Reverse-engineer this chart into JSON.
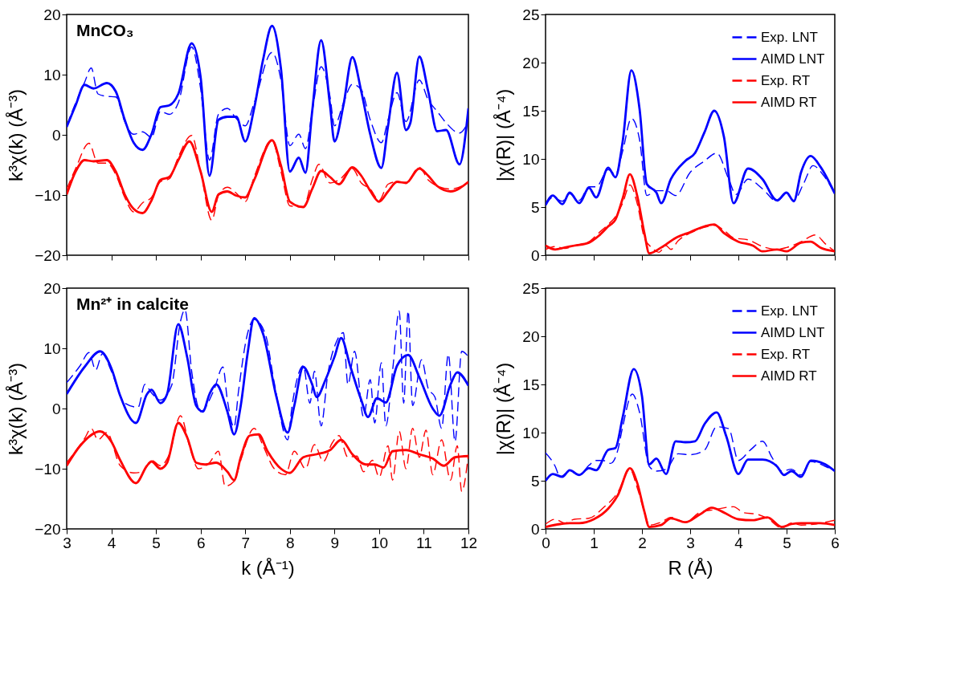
{
  "chart_data": [
    {
      "type": "line",
      "annotations": [
        "MnCO₃"
      ],
      "ylabel": "k³χ(k) (Å⁻³)",
      "xlim": [
        3,
        12
      ],
      "ylim": [
        -20,
        20
      ],
      "xticks": [
        3,
        4,
        5,
        6,
        7,
        8,
        9,
        10,
        11,
        12
      ],
      "yticks": [
        -20,
        -10,
        0,
        10,
        20
      ],
      "tick_labels": "y",
      "legend": false,
      "series": [
        {
          "color": "#0000ff",
          "line_style": "dashed",
          "x": [
            3,
            3.2,
            3.4,
            3.55,
            3.7,
            3.9,
            4.1,
            4.3,
            4.5,
            4.7,
            4.9,
            5.1,
            5.3,
            5.5,
            5.8,
            6.0,
            6.2,
            6.4,
            6.6,
            6.8,
            7.0,
            7.2,
            7.6,
            7.8,
            8.0,
            8.2,
            8.35,
            8.5,
            8.7,
            8.9,
            9.0,
            9.2,
            9.4,
            9.6,
            9.8,
            10.05,
            10.2,
            10.4,
            10.6,
            10.9,
            11.1,
            11.3,
            11.5,
            11.8,
            12
          ],
          "values": [
            1.5,
            5.3,
            8.7,
            11.1,
            6.8,
            6.4,
            6.3,
            2.2,
            0.1,
            0.5,
            -0.4,
            3.9,
            3.4,
            5.3,
            14.6,
            7.7,
            -4.2,
            3.4,
            4.4,
            2.7,
            1.5,
            5.3,
            13.7,
            9.1,
            -1.8,
            0.1,
            -2.3,
            3.9,
            11.3,
            6.3,
            1.5,
            5.3,
            8.4,
            7.5,
            2.5,
            -1.3,
            2.5,
            7,
            2.2,
            9.1,
            5.8,
            3.9,
            2,
            0.3,
            2.2
          ]
        },
        {
          "color": "#0000ff",
          "line_style": "solid",
          "x": [
            3,
            3.2,
            3.4,
            3.6,
            3.9,
            4.1,
            4.3,
            4.5,
            4.7,
            4.9,
            5.1,
            5.3,
            5.5,
            5.8,
            6.0,
            6.2,
            6.4,
            6.6,
            6.8,
            7.0,
            7.2,
            7.4,
            7.6,
            7.8,
            8.0,
            8.2,
            8.35,
            8.5,
            8.7,
            8.9,
            9.0,
            9.2,
            9.4,
            9.6,
            9.8,
            10.05,
            10.2,
            10.4,
            10.6,
            10.7,
            10.9,
            11.1,
            11.3,
            11.5,
            11.8,
            12
          ],
          "values": [
            1.3,
            4.9,
            8.3,
            7.7,
            8.6,
            7.2,
            2.5,
            -1.3,
            -2.5,
            0.1,
            4.6,
            4.9,
            6.8,
            15.2,
            9.6,
            -6.8,
            2.5,
            3,
            3,
            -1.1,
            4.4,
            12.5,
            18.1,
            11,
            -6.1,
            -3.8,
            -6.3,
            3.9,
            15.7,
            4.9,
            -1.1,
            4.9,
            12.9,
            7.2,
            0.1,
            -5.5,
            1.5,
            10.3,
            0.8,
            2,
            13,
            7.2,
            0.6,
            0.8,
            -4.9,
            4.4
          ]
        },
        {
          "color": "#ff0000",
          "line_style": "dashed",
          "x": [
            3,
            3.2,
            3.5,
            3.7,
            3.9,
            4.1,
            4.3,
            4.5,
            4.7,
            4.9,
            5.1,
            5.3,
            5.5,
            5.8,
            6.0,
            6.25,
            6.4,
            6.6,
            6.8,
            7.0,
            7.2,
            7.6,
            7.8,
            8.0,
            8.3,
            8.5,
            8.65,
            8.9,
            9.1,
            9.4,
            9.6,
            9.8,
            10.0,
            10.2,
            10.4,
            10.6,
            10.9,
            11.1,
            11.3,
            11.6,
            12
          ],
          "values": [
            -9,
            -5.6,
            -1.4,
            -4.7,
            -4.7,
            -6.6,
            -10.4,
            -12.8,
            -11.3,
            -10.4,
            -7.8,
            -7.3,
            -3.7,
            -0.1,
            -6.1,
            -14.2,
            -10.1,
            -8.7,
            -9.7,
            -11.1,
            -7,
            -0.9,
            -6.1,
            -11.8,
            -12,
            -7.5,
            -4.9,
            -8,
            -7.5,
            -5.6,
            -8,
            -9,
            -10.9,
            -8.2,
            -7.8,
            -7.9,
            -5.4,
            -7.5,
            -8.5,
            -9,
            -8
          ]
        },
        {
          "color": "#ff0000",
          "line_style": "solid",
          "x": [
            3,
            3.2,
            3.4,
            3.6,
            3.9,
            4.1,
            4.3,
            4.5,
            4.7,
            4.9,
            5.1,
            5.3,
            5.5,
            5.75,
            6.0,
            6.25,
            6.4,
            6.6,
            6.8,
            7.0,
            7.2,
            7.6,
            7.8,
            8.0,
            8.3,
            8.5,
            8.7,
            8.9,
            9.1,
            9.4,
            9.6,
            9.8,
            10.0,
            10.2,
            10.4,
            10.6,
            10.9,
            11.1,
            11.3,
            11.6,
            12
          ],
          "values": [
            -9.9,
            -6.1,
            -4.2,
            -4.4,
            -4.2,
            -6.1,
            -9.9,
            -12.3,
            -13,
            -10.9,
            -7.5,
            -7,
            -4.2,
            -1.1,
            -6.1,
            -12.8,
            -9.9,
            -9.4,
            -10.1,
            -10.4,
            -7.5,
            -0.9,
            -5.1,
            -11.1,
            -12,
            -9,
            -6,
            -7,
            -8.2,
            -5.4,
            -6.8,
            -9.3,
            -11.1,
            -9.4,
            -7.8,
            -8,
            -5.6,
            -6.8,
            -8.5,
            -9.4,
            -7.8
          ]
        }
      ]
    },
    {
      "type": "line",
      "ylabel": "|χ(R)| (Å⁻⁴)",
      "xlim": [
        0,
        6
      ],
      "ylim": [
        0,
        25
      ],
      "xticks": [
        0,
        1,
        2,
        3,
        4,
        5,
        6
      ],
      "yticks": [
        0,
        5,
        10,
        15,
        20,
        25
      ],
      "tick_labels": "y",
      "legend": "top right",
      "series": [
        {
          "name": "Exp. LNT",
          "color": "#0000ff",
          "line_style": "dashed",
          "x": [
            0,
            0.15,
            0.35,
            0.5,
            0.7,
            0.9,
            1.05,
            1.3,
            1.45,
            1.6,
            1.78,
            1.95,
            2.1,
            2.3,
            2.5,
            2.7,
            3.0,
            3.3,
            3.55,
            3.8,
            3.95,
            4.2,
            4.5,
            4.8,
            5.0,
            5.15,
            5.35,
            5.55,
            5.75,
            6.0
          ],
          "values": [
            5.2,
            6,
            5.6,
            6.4,
            5.7,
            7.1,
            7.1,
            8.9,
            8.4,
            10.8,
            14.2,
            12,
            6.2,
            6.7,
            6.7,
            6.2,
            8.6,
            9.8,
            10.6,
            7.9,
            6.3,
            7.9,
            6.9,
            5.6,
            6.4,
            5.7,
            7.4,
            9.3,
            8.4,
            6.4
          ]
        },
        {
          "name": "AIMD LNT",
          "color": "#0000ff",
          "line_style": "solid",
          "x": [
            0,
            0.15,
            0.35,
            0.5,
            0.7,
            0.9,
            1.05,
            1.3,
            1.45,
            1.6,
            1.78,
            1.95,
            2.1,
            2.3,
            2.4,
            2.6,
            2.9,
            3.1,
            3.3,
            3.5,
            3.7,
            3.9,
            4.2,
            4.5,
            4.8,
            5.0,
            5.15,
            5.3,
            5.5,
            5.7,
            6.0
          ],
          "values": [
            5.2,
            6.2,
            5.3,
            6.5,
            5.4,
            7,
            6,
            9.1,
            8.1,
            11.8,
            19.2,
            15.2,
            7.4,
            6.5,
            5.4,
            7.9,
            9.8,
            10.6,
            12.8,
            15,
            12.3,
            5.4,
            9,
            7.9,
            5.7,
            6.5,
            5.6,
            8.6,
            10.3,
            9.2,
            6.4
          ]
        },
        {
          "name": "Exp. RT",
          "color": "#ff0000",
          "line_style": "dashed",
          "x": [
            0,
            0.2,
            0.4,
            0.6,
            0.9,
            1.1,
            1.3,
            1.45,
            1.6,
            1.75,
            1.9,
            2.05,
            2.2,
            2.35,
            2.5,
            2.6,
            2.75,
            3.0,
            3.3,
            3.5,
            3.7,
            3.9,
            4.2,
            4.5,
            4.8,
            5.0,
            5.3,
            5.6,
            5.8,
            6.0
          ],
          "values": [
            0.6,
            0.9,
            0.7,
            1,
            1.4,
            2.3,
            3.2,
            4,
            5.4,
            7.3,
            5.4,
            1.8,
            0.8,
            0.3,
            1,
            0.6,
            1.5,
            2.3,
            2.9,
            3.1,
            2.6,
            1.8,
            1.6,
            0.9,
            0.6,
            0.8,
            1.4,
            2.1,
            1.2,
            0.4
          ]
        },
        {
          "name": "AIMD RT",
          "color": "#ff0000",
          "line_style": "solid",
          "x": [
            0,
            0.2,
            0.4,
            0.6,
            0.9,
            1.1,
            1.3,
            1.45,
            1.6,
            1.75,
            1.9,
            2.05,
            2.15,
            2.4,
            2.7,
            3.0,
            3.3,
            3.5,
            3.7,
            4.0,
            4.3,
            4.5,
            4.8,
            5.0,
            5.3,
            5.5,
            5.7,
            6.0
          ],
          "values": [
            1,
            0.6,
            0.8,
            1,
            1.3,
            2,
            3,
            3.7,
            5.9,
            8.4,
            6.2,
            2.3,
            0.2,
            0.8,
            1.8,
            2.4,
            3,
            3.2,
            2.3,
            1.4,
            1,
            0.4,
            0.6,
            0.4,
            1.3,
            1.4,
            0.8,
            0.4
          ]
        }
      ]
    },
    {
      "type": "line",
      "annotations": [
        "Mn²⁺ in calcite"
      ],
      "xlabel": "k (Å⁻¹)",
      "ylabel": "k³χ(k) (Å⁻³)",
      "xlim": [
        3,
        12
      ],
      "ylim": [
        -20,
        20
      ],
      "xticks": [
        3,
        4,
        5,
        6,
        7,
        8,
        9,
        10,
        11,
        12
      ],
      "yticks": [
        -20,
        -10,
        0,
        10,
        20
      ],
      "legend": false,
      "series": [
        {
          "color": "#0000ff",
          "line_style": "dashed",
          "x": [
            3,
            3.3,
            3.5,
            3.65,
            3.8,
            4.0,
            4.3,
            4.6,
            4.75,
            4.9,
            5.1,
            5.35,
            5.55,
            5.65,
            5.8,
            6.0,
            6.3,
            6.5,
            6.6,
            6.75,
            6.85,
            7.05,
            7.2,
            7.45,
            7.65,
            7.95,
            8.05,
            8.3,
            8.45,
            8.55,
            8.7,
            8.85,
            9.05,
            9.2,
            9.3,
            9.45,
            9.65,
            9.8,
            9.9,
            10.05,
            10.15,
            10.3,
            10.45,
            10.55,
            10.65,
            10.75,
            10.95,
            11.1,
            11.25,
            11.4,
            11.55,
            11.7,
            11.85,
            12
          ],
          "values": [
            4.3,
            7.1,
            9.3,
            6.4,
            9.1,
            6.2,
            0.9,
            0.2,
            4,
            2.6,
            1.4,
            3.8,
            14.5,
            16.4,
            6.2,
            -0.5,
            3.1,
            6.9,
            1.4,
            -3.1,
            2.9,
            12.4,
            14.8,
            12.4,
            4.3,
            -5.2,
            0.5,
            7.1,
            0.9,
            6.2,
            -2.9,
            5.7,
            11.2,
            12.6,
            4,
            9.5,
            -1.4,
            4.8,
            -2.4,
            7.6,
            -2.9,
            6.2,
            16.2,
            0.9,
            16.2,
            0.5,
            8.1,
            3.3,
            1.9,
            -3.3,
            9,
            -5.5,
            9.5,
            8.6
          ]
        },
        {
          "color": "#0000ff",
          "line_style": "solid",
          "x": [
            3,
            3.4,
            3.75,
            4.0,
            4.2,
            4.55,
            4.8,
            4.9,
            5.1,
            5.25,
            5.5,
            5.7,
            5.9,
            6.05,
            6.2,
            6.35,
            6.6,
            6.75,
            6.9,
            7.05,
            7.2,
            7.4,
            7.7,
            7.95,
            8.1,
            8.3,
            8.5,
            8.6,
            8.8,
            9.0,
            9.15,
            9.35,
            9.6,
            9.75,
            9.95,
            10.15,
            10.4,
            10.65,
            10.9,
            11.2,
            11.35,
            11.6,
            11.75,
            12
          ],
          "values": [
            2.4,
            6.9,
            9.5,
            6.7,
            2.1,
            -2.4,
            2.4,
            3.1,
            0.9,
            2.4,
            14,
            8.5,
            0.5,
            -0.5,
            2.4,
            4,
            -0.5,
            -4.3,
            0.5,
            9,
            15,
            12.4,
            1.9,
            -4,
            0.5,
            6.9,
            4,
            1.9,
            4.8,
            8.6,
            11.7,
            7.1,
            1.4,
            -1.4,
            1.7,
            1,
            7.1,
            8.9,
            5.2,
            0,
            -1.2,
            4,
            6,
            3.8
          ]
        },
        {
          "color": "#ff0000",
          "line_style": "dashed",
          "x": [
            3,
            3.4,
            3.55,
            3.7,
            3.9,
            4.2,
            4.5,
            4.7,
            4.9,
            5.1,
            5.3,
            5.55,
            5.75,
            5.95,
            6.2,
            6.4,
            6.55,
            6.75,
            6.9,
            7.2,
            7.4,
            7.65,
            7.9,
            8.1,
            8.35,
            8.55,
            8.75,
            8.95,
            9.1,
            9.3,
            9.5,
            9.65,
            9.85,
            10.0,
            10.2,
            10.3,
            10.45,
            10.6,
            10.75,
            10.9,
            11.05,
            11.2,
            11.4,
            11.6,
            11.75,
            11.85,
            12
          ],
          "values": [
            -9,
            -5,
            -3.3,
            -5.2,
            -4,
            -9.5,
            -10.7,
            -10.5,
            -8.6,
            -9.5,
            -7.6,
            -1.2,
            -6.2,
            -10,
            -9,
            -7.1,
            -12.9,
            -12.1,
            -8.6,
            -3.3,
            -6.2,
            -10,
            -11,
            -7.1,
            -10,
            -6,
            -8.8,
            -5.7,
            -4.5,
            -8.1,
            -7.9,
            -10.5,
            -8.6,
            -11.4,
            -6.2,
            -11.9,
            -3.8,
            -10,
            -3.3,
            -8.1,
            -3.6,
            -11,
            -5.2,
            -11.9,
            -6.2,
            -13.8,
            -7.6
          ]
        },
        {
          "color": "#ff0000",
          "line_style": "solid",
          "x": [
            3,
            3.3,
            3.75,
            4.0,
            4.2,
            4.55,
            4.8,
            4.9,
            5.1,
            5.25,
            5.5,
            5.7,
            5.9,
            6.1,
            6.35,
            6.6,
            6.75,
            6.9,
            7.1,
            7.3,
            7.5,
            7.8,
            8.0,
            8.3,
            8.6,
            8.9,
            9.15,
            9.4,
            9.7,
            9.9,
            10.1,
            10.3,
            10.6,
            10.9,
            11.2,
            11.45,
            11.7,
            12
          ],
          "values": [
            -9.5,
            -6.2,
            -3.8,
            -5.5,
            -8.6,
            -12.4,
            -9.5,
            -8.8,
            -10,
            -9,
            -2.4,
            -4.8,
            -9,
            -9.3,
            -9,
            -10.5,
            -11.9,
            -8.1,
            -4.5,
            -4.3,
            -7.1,
            -10,
            -10.7,
            -8.1,
            -7.6,
            -6.9,
            -5.2,
            -7.6,
            -9.3,
            -9.3,
            -9.8,
            -7.1,
            -6.9,
            -7.6,
            -8.3,
            -9.5,
            -8.1,
            -7.9
          ]
        }
      ]
    },
    {
      "type": "line",
      "xlabel": "R (Å)",
      "ylabel": "|χ(R)| (Å⁻⁴)",
      "xlim": [
        0,
        6
      ],
      "ylim": [
        0,
        25
      ],
      "xticks": [
        0,
        1,
        2,
        3,
        4,
        5,
        6
      ],
      "yticks": [
        0,
        5,
        10,
        15,
        20,
        25
      ],
      "legend": "top right",
      "series": [
        {
          "name": "Exp. LNT",
          "color": "#0000ff",
          "line_style": "dashed",
          "x": [
            0,
            0.2,
            0.3,
            0.5,
            0.7,
            0.9,
            1.05,
            1.2,
            1.35,
            1.5,
            1.6,
            1.8,
            1.95,
            2.15,
            2.3,
            2.5,
            2.75,
            3.0,
            3.3,
            3.55,
            3.8,
            4.0,
            4.25,
            4.5,
            4.7,
            4.9,
            5.1,
            5.3,
            5.5,
            5.8,
            6.0
          ],
          "values": [
            7.9,
            6.5,
            5.4,
            6,
            5.6,
            6.6,
            7.1,
            7.1,
            6.8,
            8.2,
            10.6,
            14,
            12.1,
            6.5,
            6,
            6.2,
            7.8,
            7.7,
            8.2,
            10.6,
            10.4,
            7.1,
            8.2,
            9.1,
            7.4,
            6,
            6.2,
            5.6,
            7,
            6.5,
            6
          ]
        },
        {
          "name": "AIMD LNT",
          "color": "#0000ff",
          "line_style": "solid",
          "x": [
            0,
            0.15,
            0.35,
            0.5,
            0.7,
            0.9,
            1.05,
            1.3,
            1.45,
            1.6,
            1.83,
            2.0,
            2.15,
            2.3,
            2.5,
            2.7,
            2.9,
            3.1,
            3.3,
            3.55,
            3.75,
            4.0,
            4.2,
            4.5,
            4.8,
            4.95,
            5.1,
            5.3,
            5.5,
            5.8,
            6.0
          ],
          "values": [
            5,
            5.7,
            5.4,
            6.1,
            5.6,
            6.3,
            6.1,
            8.2,
            8.4,
            11.6,
            16.6,
            13.8,
            6.7,
            7.3,
            5.7,
            9.1,
            9,
            9.1,
            10.9,
            12.1,
            9.6,
            5.7,
            7.2,
            7.2,
            6.5,
            5.6,
            6,
            5.4,
            7.1,
            6.7,
            6
          ]
        },
        {
          "name": "Exp. RT",
          "color": "#ff0000",
          "line_style": "dashed",
          "x": [
            0,
            0.2,
            0.4,
            0.6,
            0.9,
            1.2,
            1.5,
            1.75,
            1.9,
            2.05,
            2.15,
            2.4,
            2.6,
            2.9,
            3.2,
            3.5,
            3.9,
            4.1,
            4.4,
            4.6,
            4.9,
            5.1,
            5.3,
            5.6,
            5.8,
            6.0
          ],
          "values": [
            0.5,
            1,
            0.6,
            1,
            1.1,
            2.2,
            3.8,
            6.2,
            4.3,
            1.8,
            0.4,
            0.7,
            1.2,
            0.7,
            1.7,
            2,
            2.3,
            1.7,
            1.5,
            1.1,
            0.1,
            0.6,
            0.4,
            0.5,
            0.7,
            0.9
          ]
        },
        {
          "name": "AIMD RT",
          "color": "#ff0000",
          "line_style": "solid",
          "x": [
            0,
            0.3,
            0.5,
            0.7,
            1.0,
            1.3,
            1.5,
            1.75,
            1.9,
            2.05,
            2.15,
            2.4,
            2.6,
            2.9,
            3.2,
            3.45,
            3.7,
            4.0,
            4.3,
            4.6,
            4.9,
            5.1,
            5.3,
            5.5,
            5.7,
            6.0
          ],
          "values": [
            0.2,
            0.5,
            0.6,
            0.6,
            1,
            2.1,
            3.5,
            6.3,
            4.8,
            1.8,
            0.2,
            0.4,
            1.1,
            0.7,
            1.5,
            2.2,
            1.7,
            1,
            0.9,
            1.2,
            0.2,
            0.5,
            0.6,
            0.6,
            0.6,
            0.4
          ]
        }
      ]
    }
  ]
}
